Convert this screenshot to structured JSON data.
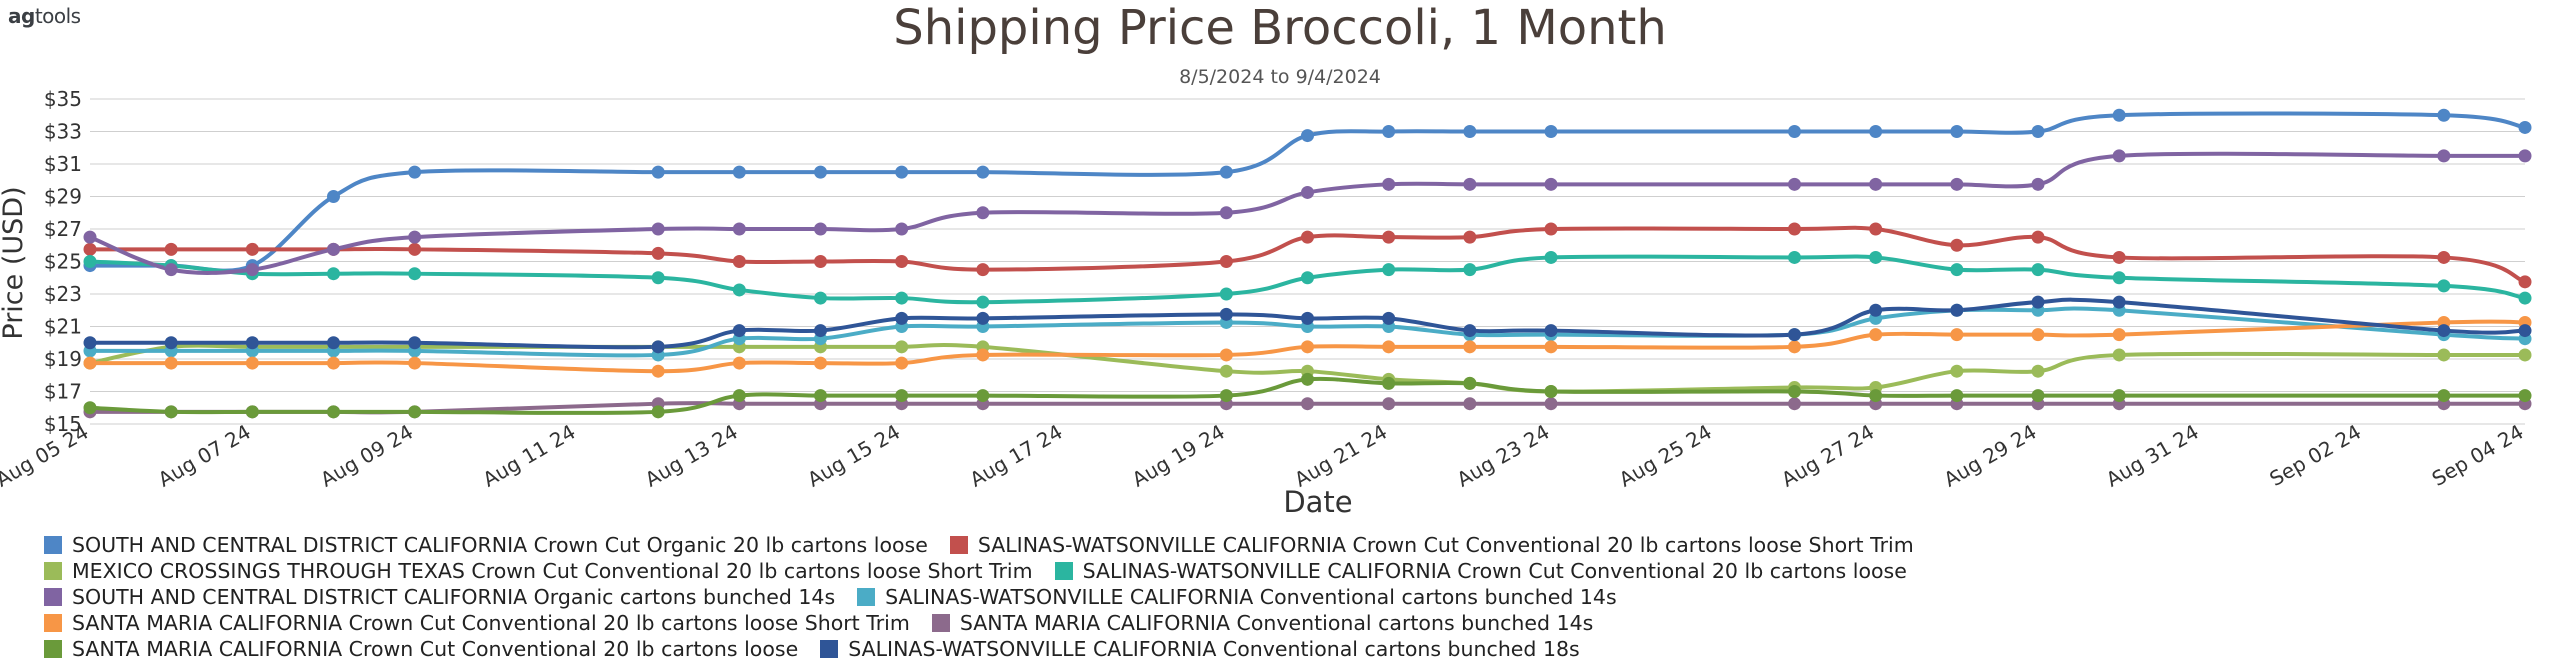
{
  "brand": {
    "prefix": "ag",
    "suffix": "tools"
  },
  "chart_data": {
    "type": "line",
    "title": "Shipping Price  Broccoli, 1 Month",
    "subtitle": "8/5/2024 to 9/4/2024",
    "xlabel": "Date",
    "ylabel": "Price (USD)",
    "ylim": [
      15,
      35
    ],
    "y_ticks": [
      "$15",
      "$17",
      "$19",
      "$21",
      "$23",
      "$25",
      "$27",
      "$29",
      "$31",
      "$33",
      "$35"
    ],
    "x_ticks": [
      "Aug 05 24",
      "Aug 07 24",
      "Aug 09 24",
      "Aug 11 24",
      "Aug 13 24",
      "Aug 15 24",
      "Aug 17 24",
      "Aug 19 24",
      "Aug 21 24",
      "Aug 23 24",
      "Aug 25 24",
      "Aug 27 24",
      "Aug 29 24",
      "Aug 31 24",
      "Sep 02 24",
      "Sep 04 24"
    ],
    "dates": [
      "Aug 05 24",
      "Aug 06 24",
      "Aug 07 24",
      "Aug 08 24",
      "Aug 09 24",
      "Aug 12 24",
      "Aug 13 24",
      "Aug 14 24",
      "Aug 15 24",
      "Aug 16 24",
      "Aug 19 24",
      "Aug 20 24",
      "Aug 21 24",
      "Aug 22 24",
      "Aug 23 24",
      "Aug 26 24",
      "Aug 27 24",
      "Aug 28 24",
      "Aug 29 24",
      "Aug 30 24",
      "Sep 03 24",
      "Sep 04 24"
    ],
    "grid": true,
    "legend_position": "bottom",
    "series": [
      {
        "name": "SOUTH AND CENTRAL DISTRICT CALIFORNIA Crown Cut Organic 20 lb cartons loose",
        "color": "#4e86c6",
        "values": [
          24.75,
          24.75,
          24.75,
          29.0,
          30.5,
          30.5,
          30.5,
          30.5,
          30.5,
          30.5,
          30.5,
          32.75,
          33.0,
          33.0,
          33.0,
          33.0,
          33.0,
          33.0,
          33.0,
          34.0,
          34.0,
          33.25
        ]
      },
      {
        "name": "SALINAS-WATSONVILLE CALIFORNIA Crown Cut Conventional 20 lb cartons loose Short Trim",
        "color": "#c2504d",
        "values": [
          25.75,
          25.75,
          25.75,
          25.75,
          25.75,
          25.5,
          25.0,
          25.0,
          25.0,
          24.5,
          25.0,
          26.5,
          26.5,
          26.5,
          27.0,
          27.0,
          27.0,
          26.0,
          26.5,
          25.25,
          25.25,
          23.75
        ]
      },
      {
        "name": "MEXICO CROSSINGS THROUGH TEXAS Crown Cut Conventional 20 lb cartons loose Short Trim",
        "color": "#9bbb59",
        "values": [
          18.75,
          19.75,
          19.75,
          19.75,
          19.75,
          19.75,
          19.75,
          19.75,
          19.75,
          19.75,
          18.25,
          18.25,
          17.75,
          17.5,
          17.0,
          17.25,
          17.25,
          18.25,
          18.25,
          19.25,
          19.25,
          19.25
        ]
      },
      {
        "name": "SALINAS-WATSONVILLE CALIFORNIA Crown Cut Conventional 20 lb cartons loose",
        "color": "#2bb5a0",
        "values": [
          25.0,
          24.75,
          24.25,
          24.25,
          24.25,
          24.0,
          23.25,
          22.75,
          22.75,
          22.5,
          23.0,
          24.0,
          24.5,
          24.5,
          25.25,
          25.25,
          25.25,
          24.5,
          24.5,
          24.0,
          23.5,
          22.75
        ]
      },
      {
        "name": "SOUTH AND CENTRAL DISTRICT CALIFORNIA Organic cartons bunched 14s",
        "color": "#8064a2",
        "values": [
          26.5,
          24.5,
          24.5,
          25.75,
          26.5,
          27.0,
          27.0,
          27.0,
          27.0,
          28.0,
          28.0,
          29.25,
          29.75,
          29.75,
          29.75,
          29.75,
          29.75,
          29.75,
          29.75,
          31.5,
          31.5,
          31.5
        ]
      },
      {
        "name": "SALINAS-WATSONVILLE CALIFORNIA Conventional cartons bunched 14s",
        "color": "#4bacc6",
        "values": [
          19.5,
          19.5,
          19.5,
          19.5,
          19.5,
          19.25,
          20.25,
          20.25,
          21.0,
          21.0,
          21.25,
          21.0,
          21.0,
          20.5,
          20.5,
          20.5,
          21.5,
          22.0,
          22.0,
          22.0,
          20.5,
          20.25
        ]
      },
      {
        "name": "SANTA MARIA CALIFORNIA Crown Cut Conventional 20 lb cartons loose Short Trim",
        "color": "#f79646",
        "values": [
          18.75,
          18.75,
          18.75,
          18.75,
          18.75,
          18.25,
          18.75,
          18.75,
          18.75,
          19.25,
          19.25,
          19.75,
          19.75,
          19.75,
          19.75,
          19.75,
          20.5,
          20.5,
          20.5,
          20.5,
          21.25,
          21.25
        ]
      },
      {
        "name": "SANTA MARIA CALIFORNIA Conventional cartons bunched 14s",
        "color": "#8c6a8c",
        "values": [
          15.75,
          15.75,
          15.75,
          15.75,
          15.75,
          16.25,
          16.25,
          16.25,
          16.25,
          16.25,
          16.25,
          16.25,
          16.25,
          16.25,
          16.25,
          16.25,
          16.25,
          16.25,
          16.25,
          16.25,
          16.25,
          16.25
        ]
      },
      {
        "name": "SANTA MARIA CALIFORNIA Crown Cut Conventional 20 lb cartons loose",
        "color": "#6a9a3a",
        "values": [
          16.0,
          15.75,
          15.75,
          15.75,
          15.75,
          15.75,
          16.75,
          16.75,
          16.75,
          16.75,
          16.75,
          17.75,
          17.5,
          17.5,
          17.0,
          17.0,
          16.75,
          16.75,
          16.75,
          16.75,
          16.75,
          16.75
        ]
      },
      {
        "name": "SALINAS-WATSONVILLE CALIFORNIA Conventional cartons bunched 18s",
        "color": "#2f5597",
        "values": [
          20.0,
          20.0,
          20.0,
          20.0,
          20.0,
          19.75,
          20.75,
          20.75,
          21.5,
          21.5,
          21.75,
          21.5,
          21.5,
          20.75,
          20.75,
          20.5,
          22.0,
          22.0,
          22.5,
          22.5,
          20.75,
          20.75
        ]
      }
    ]
  }
}
